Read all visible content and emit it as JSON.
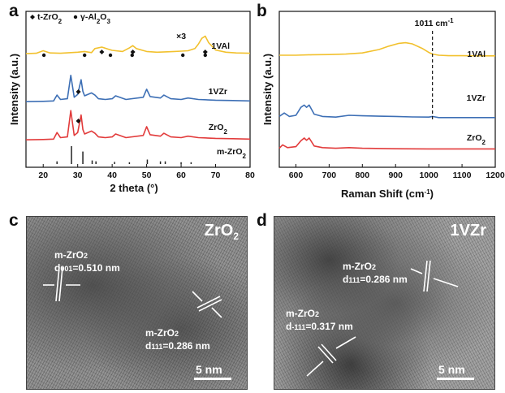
{
  "panels": {
    "a": {
      "letter": "a"
    },
    "b": {
      "letter": "b"
    },
    "c": {
      "letter": "c",
      "title": "ZrO2",
      "title_base": "ZrO",
      "title_sub": "2",
      "label1_line1": "m-ZrO",
      "label1_sub1": "2",
      "label1_line2_pre": "d",
      "label1_line2_sub": "001",
      "label1_line2_post": "=0.510 nm",
      "label2_line1": "m-ZrO",
      "label2_sub1": "2",
      "label2_line2_pre": "d",
      "label2_line2_sub": "111",
      "label2_line2_post": "=0.286 nm",
      "scale": "5 nm"
    },
    "d": {
      "letter": "d",
      "title": "1VZr",
      "label1_line1": "m-ZrO",
      "label1_sub1": "2",
      "label1_line2_pre": "d",
      "label1_line2_sub": "111",
      "label1_line2_post": "=0.286 nm",
      "label2_line1": "m-ZrO",
      "label2_sub1": "2",
      "label2_line2_pre": "d",
      "label2_line2_sub": "-111",
      "label2_line2_post": "=0.317 nm",
      "scale": "5 nm"
    }
  },
  "chart_data": [
    {
      "type": "line",
      "panel": "a",
      "xlabel": "2 theta  (°)",
      "ylabel": "Intensity (a.u.)",
      "xlim": [
        15,
        80
      ],
      "xticks": [
        20,
        30,
        40,
        50,
        60,
        70,
        80
      ],
      "legend": {
        "diamond": "t-ZrO2",
        "circle": "γ-Al2O3"
      },
      "annotation": "×3",
      "series": [
        {
          "name": "1VAl",
          "color": "#f2c12e",
          "x": [
            15,
            18,
            20,
            22,
            25,
            28,
            30,
            32,
            34,
            35,
            37,
            39,
            40,
            43,
            45,
            46,
            47,
            50,
            53,
            56,
            58,
            60,
            62,
            64,
            65,
            66,
            67,
            68,
            70,
            73,
            76,
            80
          ],
          "y": [
            0.55,
            0.58,
            0.75,
            0.6,
            0.58,
            0.62,
            0.65,
            0.7,
            0.62,
            0.9,
            1.0,
            0.85,
            0.78,
            0.7,
            0.95,
            1.1,
            0.9,
            0.7,
            0.65,
            0.68,
            0.7,
            0.72,
            0.75,
            0.9,
            1.2,
            1.6,
            1.75,
            1.3,
            0.8,
            0.65,
            0.6,
            0.58
          ]
        },
        {
          "name": "1VZr",
          "color": "#3d6fb5",
          "x": [
            15,
            20,
            23,
            24,
            25,
            27,
            28,
            29,
            30,
            31,
            31.5,
            32,
            34,
            35,
            36,
            38,
            40,
            41,
            44,
            49,
            50,
            51,
            54,
            55,
            57,
            60,
            62,
            65,
            70,
            75,
            80
          ],
          "y": [
            0.1,
            0.12,
            0.15,
            0.55,
            0.25,
            0.3,
            1.9,
            0.4,
            0.6,
            1.6,
            0.8,
            0.5,
            0.7,
            0.55,
            0.3,
            0.25,
            0.3,
            0.5,
            0.25,
            0.4,
            0.95,
            0.45,
            0.35,
            0.55,
            0.3,
            0.25,
            0.35,
            0.25,
            0.2,
            0.18,
            0.15
          ]
        },
        {
          "name": "ZrO2",
          "color": "#e23b3b",
          "x": [
            15,
            20,
            23,
            24,
            25,
            27,
            28,
            29,
            30,
            31,
            31.5,
            32,
            34,
            35,
            36,
            38,
            40,
            41,
            44,
            49,
            50,
            51,
            54,
            55,
            57,
            60,
            62,
            65,
            70,
            75,
            80
          ],
          "y": [
            0.1,
            0.12,
            0.15,
            0.6,
            0.25,
            0.3,
            2.1,
            0.4,
            0.6,
            1.8,
            0.8,
            0.5,
            0.7,
            0.55,
            0.3,
            0.25,
            0.3,
            0.5,
            0.25,
            0.4,
            1.0,
            0.45,
            0.35,
            0.55,
            0.3,
            0.25,
            0.35,
            0.25,
            0.2,
            0.18,
            0.15
          ]
        },
        {
          "name": "m-ZrO2",
          "color": "#222222",
          "type": "stick",
          "x": [
            24,
            28.2,
            31.5,
            34.2,
            35.3,
            40.7,
            45,
            50.2,
            54,
            55.4,
            60,
            62.9
          ],
          "y": [
            0.15,
            1.0,
            0.7,
            0.2,
            0.15,
            0.12,
            0.1,
            0.25,
            0.15,
            0.15,
            0.1,
            0.1
          ]
        }
      ],
      "markers": {
        "circles_x": [
          20.2,
          32,
          39.5,
          45.8,
          60.5,
          67
        ],
        "diamonds_x": [
          37,
          46,
          67
        ],
        "diamond_zr_x": 30.2
      }
    },
    {
      "type": "line",
      "panel": "b",
      "xlabel": "Raman Shift (cm-1)",
      "ylabel": "Intensity (a.u.)",
      "xlim": [
        550,
        1200
      ],
      "xticks": [
        600,
        700,
        800,
        900,
        1000,
        1100,
        1200
      ],
      "annotation": "1011 cm-1",
      "dashed_line_x": 1011,
      "series": [
        {
          "name": "1VAl",
          "color": "#f2c12e",
          "x": [
            550,
            600,
            650,
            700,
            750,
            800,
            850,
            880,
            910,
            930,
            950,
            980,
            1000,
            1011,
            1030,
            1060,
            1100,
            1150,
            1200
          ],
          "y": [
            1.0,
            1.0,
            1.02,
            1.03,
            1.05,
            1.1,
            1.25,
            1.4,
            1.52,
            1.55,
            1.5,
            1.3,
            1.12,
            1.05,
            1.0,
            0.98,
            0.98,
            0.97,
            0.97
          ]
        },
        {
          "name": "1VZr",
          "color": "#3d6fb5",
          "x": [
            550,
            565,
            580,
            600,
            615,
            625,
            632,
            640,
            655,
            680,
            720,
            760,
            800,
            850,
            900,
            950,
            1000,
            1011,
            1030,
            1100,
            1200
          ],
          "y": [
            0.45,
            0.6,
            0.45,
            0.5,
            0.85,
            0.95,
            0.85,
            0.95,
            0.55,
            0.45,
            0.42,
            0.5,
            0.48,
            0.46,
            0.45,
            0.43,
            0.42,
            0.45,
            0.4,
            0.4,
            0.4
          ]
        },
        {
          "name": "ZrO2",
          "color": "#e23b3b",
          "x": [
            550,
            560,
            575,
            600,
            615,
            625,
            632,
            640,
            655,
            680,
            720,
            760,
            800,
            900,
            1000,
            1100,
            1200
          ],
          "y": [
            0.05,
            0.2,
            0.08,
            0.12,
            0.38,
            0.5,
            0.4,
            0.5,
            0.15,
            0.08,
            0.05,
            0.08,
            0.05,
            0.03,
            0.02,
            0.02,
            0.02
          ]
        }
      ]
    }
  ]
}
